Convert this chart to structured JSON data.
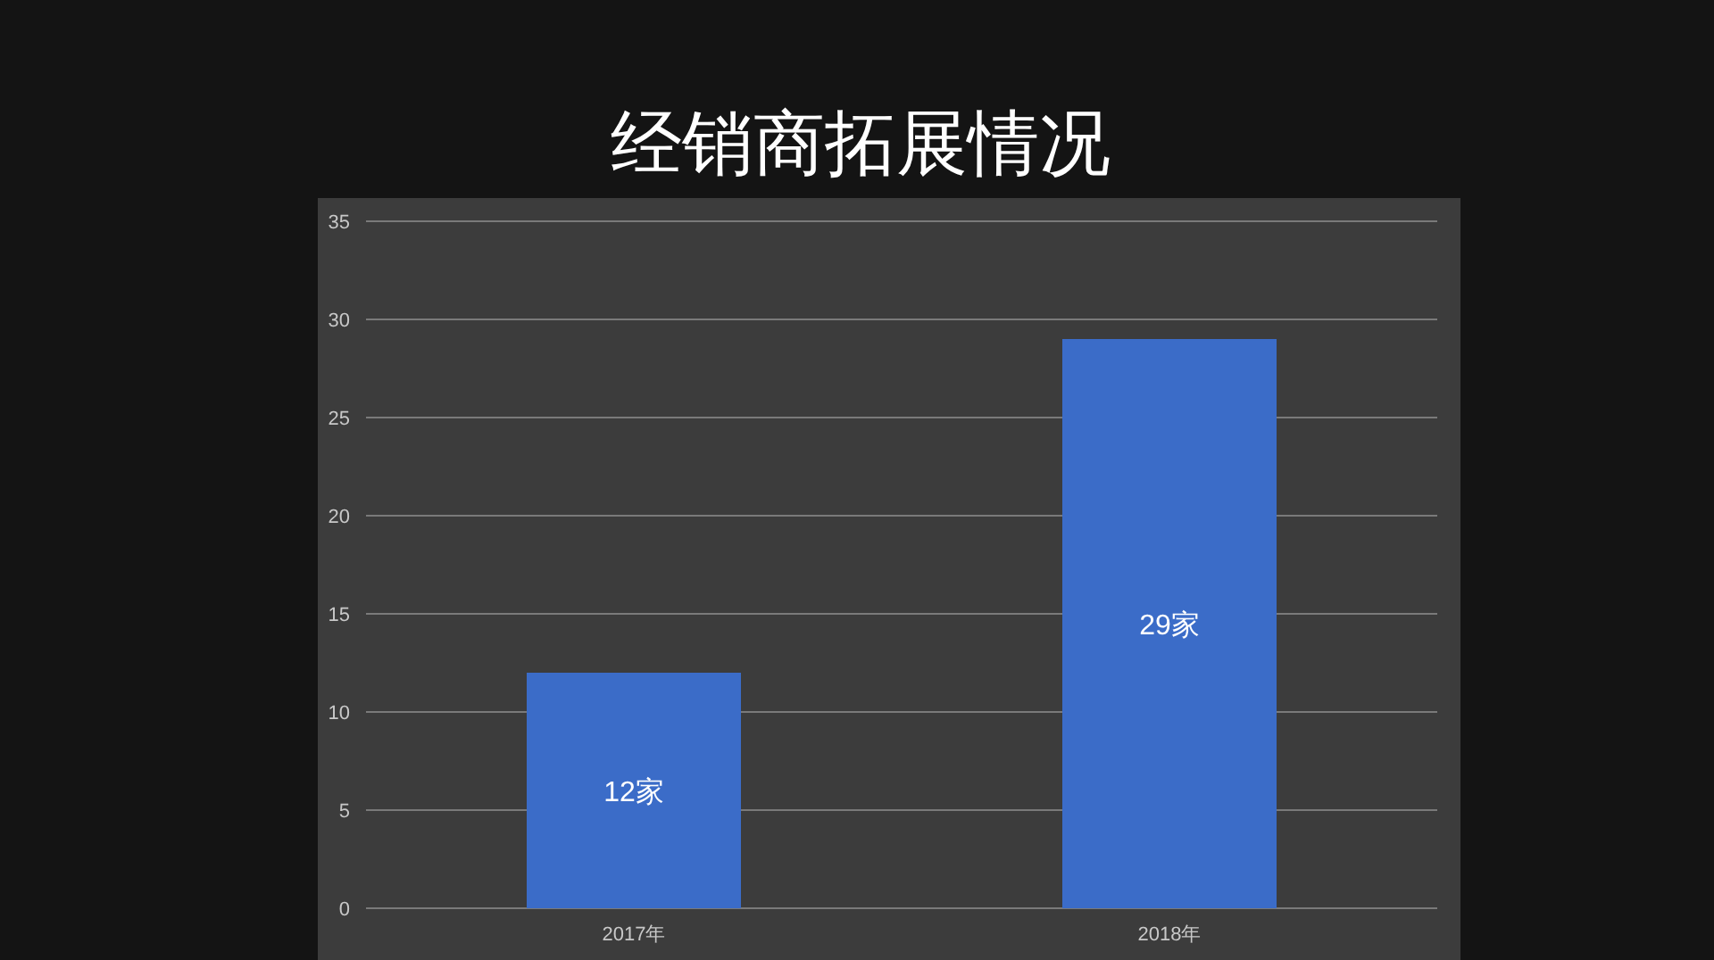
{
  "chart_data": {
    "type": "bar",
    "title": "经销商拓展情况",
    "categories": [
      "2017年",
      "2018年"
    ],
    "values": [
      12,
      29
    ],
    "value_labels": [
      "12家",
      "29家"
    ],
    "color": "#3b6cc8",
    "ylim": [
      0,
      35
    ],
    "yticks": [
      0,
      5,
      10,
      15,
      20,
      25,
      30,
      35
    ],
    "grid": "y"
  }
}
